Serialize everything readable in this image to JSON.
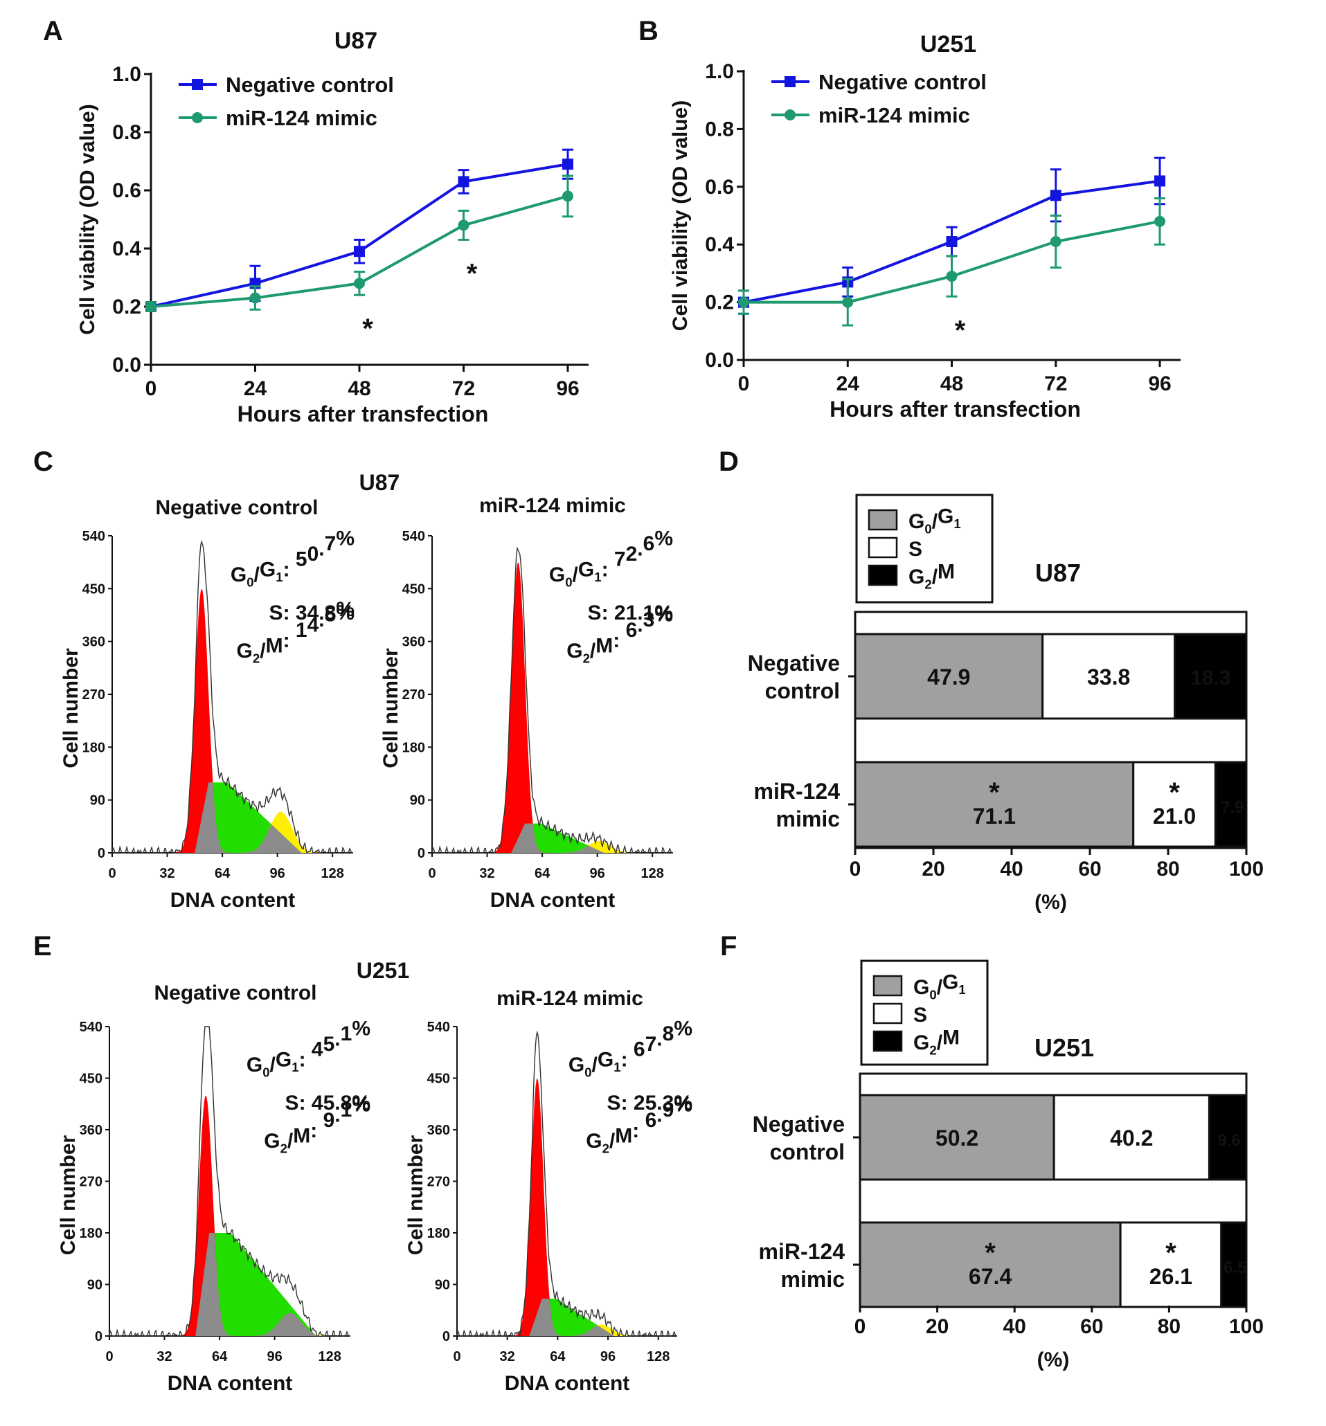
{
  "figure": {
    "panel_letters": [
      "A",
      "B",
      "C",
      "D",
      "E",
      "F"
    ],
    "colors": {
      "negative_control": "#1414e0",
      "mimic": "#1e9a6e",
      "g0g1_peak": "#ff0000",
      "s_phase": "#22dd00",
      "g2m_peak": "#ffee00",
      "overlap": "#8c8c8c",
      "bar_g0g1": "#a0a0a0",
      "bar_s": "#ffffff",
      "bar_g2m": "#000000"
    }
  },
  "chart_data": [
    {
      "id": "A",
      "type": "line",
      "title": "U87",
      "xlabel": "Hours after transfection",
      "ylabel": "Cell viability (OD value)",
      "x": [
        0,
        24,
        48,
        72,
        96
      ],
      "x_tick_labels": [
        "0",
        "24",
        "48",
        "72",
        "96"
      ],
      "y_tick_labels": [
        "0.0",
        "0.2",
        "0.4",
        "0.6",
        "0.8",
        "1.0"
      ],
      "ylim": [
        0,
        1.0
      ],
      "legend_location": "top-left",
      "series": [
        {
          "name": "Negative control",
          "marker": "square",
          "values": [
            0.2,
            0.28,
            0.39,
            0.63,
            0.69
          ],
          "errors": [
            0.015,
            0.06,
            0.04,
            0.04,
            0.05
          ]
        },
        {
          "name": "miR-124 mimic",
          "marker": "circle",
          "values": [
            0.2,
            0.23,
            0.28,
            0.48,
            0.58
          ],
          "errors": [
            0.015,
            0.04,
            0.04,
            0.05,
            0.07
          ]
        }
      ],
      "significance": [
        {
          "x": 48,
          "label": "*"
        },
        {
          "x": 72,
          "label": "*"
        }
      ]
    },
    {
      "id": "B",
      "type": "line",
      "title": "U251",
      "xlabel": "Hours after transfection",
      "ylabel": "Cell viability (OD value)",
      "x": [
        0,
        24,
        48,
        72,
        96
      ],
      "x_tick_labels": [
        "0",
        "24",
        "48",
        "72",
        "96"
      ],
      "y_tick_labels": [
        "0.0",
        "0.2",
        "0.4",
        "0.6",
        "0.8",
        "1.0"
      ],
      "ylim": [
        0,
        1.0
      ],
      "legend_location": "top-left",
      "series": [
        {
          "name": "Negative control",
          "marker": "square",
          "values": [
            0.2,
            0.27,
            0.41,
            0.57,
            0.62
          ],
          "errors": [
            0.04,
            0.05,
            0.05,
            0.09,
            0.08
          ]
        },
        {
          "name": "miR-124 mimic",
          "marker": "circle",
          "values": [
            0.2,
            0.2,
            0.29,
            0.41,
            0.48
          ],
          "errors": [
            0.04,
            0.08,
            0.07,
            0.09,
            0.08
          ]
        }
      ],
      "significance": [
        {
          "x": 48,
          "label": "*"
        }
      ]
    },
    {
      "id": "C",
      "type": "histogram",
      "title": "U87",
      "xlabel": "DNA content",
      "ylabel": "Cell number",
      "x_tick_labels": [
        "0",
        "32",
        "64",
        "96",
        "128"
      ],
      "y_tick_labels": [
        "0",
        "90",
        "180",
        "270",
        "360",
        "450",
        "540"
      ],
      "panels": [
        {
          "subtitle": "Negative control",
          "phase_labels": [
            {
              "label": "G0/G1:",
              "value": "50.7%"
            },
            {
              "label": "S:",
              "value": "34.8%"
            },
            {
              "label": "G2/M:",
              "value": "14.5%"
            }
          ],
          "peak_g1_height": 450,
          "peak_g1_pos": 52,
          "s_height": 120,
          "s_start": 48,
          "s_end": 110,
          "g2_height": 70,
          "g2_pos": 98,
          "outline_max": 530
        },
        {
          "subtitle": "miR-124 mimic",
          "phase_labels": [
            {
              "label": "G0/G1:",
              "value": "72.6%"
            },
            {
              "label": "S:",
              "value": "21.1%"
            },
            {
              "label": "G2/M:",
              "value": "6.3%"
            }
          ],
          "peak_g1_height": 495,
          "peak_g1_pos": 50,
          "s_height": 50,
          "s_start": 46,
          "s_end": 100,
          "g2_height": 20,
          "g2_pos": 97,
          "outline_max": 505
        }
      ]
    },
    {
      "id": "D",
      "type": "stacked_bar",
      "title": "U87",
      "xlabel": "(%)",
      "x_tick_labels": [
        "0",
        "20",
        "40",
        "60",
        "80",
        "100"
      ],
      "xlim": [
        0,
        100
      ],
      "legend": [
        "G0/G1",
        "S",
        "G2/M"
      ],
      "categories": [
        "Negative control",
        "miR-124 mimic"
      ],
      "series": [
        {
          "name": "G0/G1",
          "values": [
            47.9,
            71.1
          ],
          "labels": [
            "47.9",
            "71.1"
          ]
        },
        {
          "name": "S",
          "values": [
            33.8,
            21.0
          ],
          "labels": [
            "33.8",
            "21.0"
          ]
        },
        {
          "name": "G2/M",
          "values": [
            18.3,
            7.9
          ],
          "labels": [
            "18.3",
            "7.9"
          ]
        }
      ],
      "significance": [
        "*",
        "*"
      ]
    },
    {
      "id": "E",
      "type": "histogram",
      "title": "U251",
      "xlabel": "DNA content",
      "ylabel": "Cell number",
      "x_tick_labels": [
        "0",
        "32",
        "64",
        "96",
        "128"
      ],
      "y_tick_labels": [
        "0",
        "90",
        "180",
        "270",
        "360",
        "450",
        "540"
      ],
      "panels": [
        {
          "subtitle": "Negative control",
          "phase_labels": [
            {
              "label": "G0/G1:",
              "value": "45.1%"
            },
            {
              "label": "S:",
              "value": "45.8%"
            },
            {
              "label": "G2/M:",
              "value": "9.1%"
            }
          ],
          "peak_g1_height": 420,
          "peak_g1_pos": 56,
          "s_height": 180,
          "s_start": 50,
          "s_end": 120,
          "g2_height": 40,
          "g2_pos": 105,
          "outline_max": 540
        },
        {
          "subtitle": "miR-124 mimic",
          "phase_labels": [
            {
              "label": "G0/G1:",
              "value": "67.8%"
            },
            {
              "label": "S:",
              "value": "25.3%"
            },
            {
              "label": "G2/M:",
              "value": "6.9%"
            }
          ],
          "peak_g1_height": 450,
          "peak_g1_pos": 51,
          "s_height": 65,
          "s_start": 46,
          "s_end": 100,
          "g2_height": 20,
          "g2_pos": 92,
          "outline_max": 530
        }
      ]
    },
    {
      "id": "F",
      "type": "stacked_bar",
      "title": "U251",
      "xlabel": "(%)",
      "x_tick_labels": [
        "0",
        "20",
        "40",
        "60",
        "80",
        "100"
      ],
      "xlim": [
        0,
        100
      ],
      "legend": [
        "G0/G1",
        "S",
        "G2/M"
      ],
      "categories": [
        "Negative control",
        "miR-124 mimic"
      ],
      "series": [
        {
          "name": "G0/G1",
          "values": [
            50.2,
            67.4
          ],
          "labels": [
            "50.2",
            "67.4"
          ]
        },
        {
          "name": "S",
          "values": [
            40.2,
            26.1
          ],
          "labels": [
            "40.2",
            "26.1"
          ]
        },
        {
          "name": "G2/M",
          "values": [
            9.6,
            6.5
          ],
          "labels": [
            "9.6",
            "6.5"
          ]
        }
      ],
      "significance": [
        "*",
        "*"
      ]
    }
  ]
}
